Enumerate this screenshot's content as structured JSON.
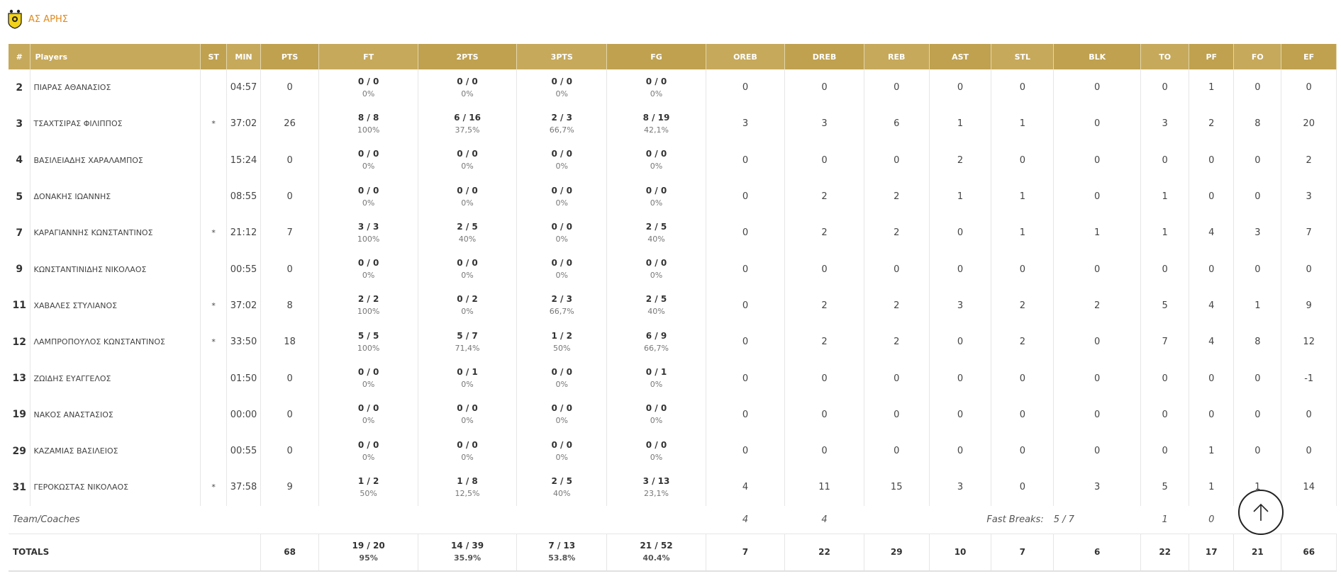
{
  "team": {
    "name": "ΑΣ ΑΡΗΣ",
    "logo_icon": "aris-logo-icon",
    "accent": "#e08a1e"
  },
  "table": {
    "header_color": "#c6a95b",
    "columns": [
      "#",
      "Players",
      "ST",
      "MIN",
      "PTS",
      "FT",
      "2PTS",
      "3PTS",
      "FG",
      "OREB",
      "DREB",
      "REB",
      "AST",
      "STL",
      "BLK",
      "TO",
      "PF",
      "FO",
      "EF"
    ],
    "players": [
      {
        "num": "2",
        "name": "ΠΙΑΡΑΣ ΑΘΑΝΑΣΙΟΣ",
        "st": "",
        "min": "04:57",
        "pts": "0",
        "ft": "0 / 0",
        "ft_pct": "0%",
        "p2": "0 / 0",
        "p2_pct": "0%",
        "p3": "0 / 0",
        "p3_pct": "0%",
        "fg": "0 / 0",
        "fg_pct": "0%",
        "oreb": "0",
        "dreb": "0",
        "reb": "0",
        "ast": "0",
        "stl": "0",
        "blk": "0",
        "to": "0",
        "pf": "1",
        "fo": "0",
        "ef": "0"
      },
      {
        "num": "3",
        "name": "ΤΣΑΧΤΣΙΡΑΣ ΦΙΛΙΠΠΟΣ",
        "st": "*",
        "min": "37:02",
        "pts": "26",
        "ft": "8 / 8",
        "ft_pct": "100%",
        "p2": "6 / 16",
        "p2_pct": "37,5%",
        "p3": "2 / 3",
        "p3_pct": "66,7%",
        "fg": "8 / 19",
        "fg_pct": "42,1%",
        "oreb": "3",
        "dreb": "3",
        "reb": "6",
        "ast": "1",
        "stl": "1",
        "blk": "0",
        "to": "3",
        "pf": "2",
        "fo": "8",
        "ef": "20"
      },
      {
        "num": "4",
        "name": "ΒΑΣΙΛΕΙΑΔΗΣ ΧΑΡΑΛΑΜΠΟΣ",
        "st": "",
        "min": "15:24",
        "pts": "0",
        "ft": "0 / 0",
        "ft_pct": "0%",
        "p2": "0 / 0",
        "p2_pct": "0%",
        "p3": "0 / 0",
        "p3_pct": "0%",
        "fg": "0 / 0",
        "fg_pct": "0%",
        "oreb": "0",
        "dreb": "0",
        "reb": "0",
        "ast": "2",
        "stl": "0",
        "blk": "0",
        "to": "0",
        "pf": "0",
        "fo": "0",
        "ef": "2"
      },
      {
        "num": "5",
        "name": "ΔΟΝΑΚΗΣ ΙΩΑΝΝΗΣ",
        "st": "",
        "min": "08:55",
        "pts": "0",
        "ft": "0 / 0",
        "ft_pct": "0%",
        "p2": "0 / 0",
        "p2_pct": "0%",
        "p3": "0 / 0",
        "p3_pct": "0%",
        "fg": "0 / 0",
        "fg_pct": "0%",
        "oreb": "0",
        "dreb": "2",
        "reb": "2",
        "ast": "1",
        "stl": "1",
        "blk": "0",
        "to": "1",
        "pf": "0",
        "fo": "0",
        "ef": "3"
      },
      {
        "num": "7",
        "name": "ΚΑΡΑΓΙΑΝΝΗΣ ΚΩΝΣΤΑΝΤΙΝΟΣ",
        "st": "*",
        "min": "21:12",
        "pts": "7",
        "ft": "3 / 3",
        "ft_pct": "100%",
        "p2": "2 / 5",
        "p2_pct": "40%",
        "p3": "0 / 0",
        "p3_pct": "0%",
        "fg": "2 / 5",
        "fg_pct": "40%",
        "oreb": "0",
        "dreb": "2",
        "reb": "2",
        "ast": "0",
        "stl": "1",
        "blk": "1",
        "to": "1",
        "pf": "4",
        "fo": "3",
        "ef": "7"
      },
      {
        "num": "9",
        "name": "ΚΩΝΣΤΑΝΤΙΝΙΔΗΣ ΝΙΚΟΛΑΟΣ",
        "st": "",
        "min": "00:55",
        "pts": "0",
        "ft": "0 / 0",
        "ft_pct": "0%",
        "p2": "0 / 0",
        "p2_pct": "0%",
        "p3": "0 / 0",
        "p3_pct": "0%",
        "fg": "0 / 0",
        "fg_pct": "0%",
        "oreb": "0",
        "dreb": "0",
        "reb": "0",
        "ast": "0",
        "stl": "0",
        "blk": "0",
        "to": "0",
        "pf": "0",
        "fo": "0",
        "ef": "0"
      },
      {
        "num": "11",
        "name": "ΧΑΒΑΛΕΣ ΣΤΥΛΙΑΝΟΣ",
        "st": "*",
        "min": "37:02",
        "pts": "8",
        "ft": "2 / 2",
        "ft_pct": "100%",
        "p2": "0 / 2",
        "p2_pct": "0%",
        "p3": "2 / 3",
        "p3_pct": "66,7%",
        "fg": "2 / 5",
        "fg_pct": "40%",
        "oreb": "0",
        "dreb": "2",
        "reb": "2",
        "ast": "3",
        "stl": "2",
        "blk": "2",
        "to": "5",
        "pf": "4",
        "fo": "1",
        "ef": "9"
      },
      {
        "num": "12",
        "name": "ΛΑΜΠΡΟΠΟΥΛΟΣ ΚΩΝΣΤΑΝΤΙΝΟΣ",
        "st": "*",
        "min": "33:50",
        "pts": "18",
        "ft": "5 / 5",
        "ft_pct": "100%",
        "p2": "5 / 7",
        "p2_pct": "71,4%",
        "p3": "1 / 2",
        "p3_pct": "50%",
        "fg": "6 / 9",
        "fg_pct": "66,7%",
        "oreb": "0",
        "dreb": "2",
        "reb": "2",
        "ast": "0",
        "stl": "2",
        "blk": "0",
        "to": "7",
        "pf": "4",
        "fo": "8",
        "ef": "12"
      },
      {
        "num": "13",
        "name": "ΖΩΙΔΗΣ ΕΥΑΓΓΕΛΟΣ",
        "st": "",
        "min": "01:50",
        "pts": "0",
        "ft": "0 / 0",
        "ft_pct": "0%",
        "p2": "0 / 1",
        "p2_pct": "0%",
        "p3": "0 / 0",
        "p3_pct": "0%",
        "fg": "0 / 1",
        "fg_pct": "0%",
        "oreb": "0",
        "dreb": "0",
        "reb": "0",
        "ast": "0",
        "stl": "0",
        "blk": "0",
        "to": "0",
        "pf": "0",
        "fo": "0",
        "ef": "-1"
      },
      {
        "num": "19",
        "name": "ΝΑΚΟΣ ΑΝΑΣΤΑΣΙΟΣ",
        "st": "",
        "min": "00:00",
        "pts": "0",
        "ft": "0 / 0",
        "ft_pct": "0%",
        "p2": "0 / 0",
        "p2_pct": "0%",
        "p3": "0 / 0",
        "p3_pct": "0%",
        "fg": "0 / 0",
        "fg_pct": "0%",
        "oreb": "0",
        "dreb": "0",
        "reb": "0",
        "ast": "0",
        "stl": "0",
        "blk": "0",
        "to": "0",
        "pf": "0",
        "fo": "0",
        "ef": "0"
      },
      {
        "num": "29",
        "name": "ΚΑΖΑΜΙΑΣ ΒΑΣΙΛΕΙΟΣ",
        "st": "",
        "min": "00:55",
        "pts": "0",
        "ft": "0 / 0",
        "ft_pct": "0%",
        "p2": "0 / 0",
        "p2_pct": "0%",
        "p3": "0 / 0",
        "p3_pct": "0%",
        "fg": "0 / 0",
        "fg_pct": "0%",
        "oreb": "0",
        "dreb": "0",
        "reb": "0",
        "ast": "0",
        "stl": "0",
        "blk": "0",
        "to": "0",
        "pf": "1",
        "fo": "0",
        "ef": "0"
      },
      {
        "num": "31",
        "name": "ΓΕΡΟΚΩΣΤΑΣ ΝΙΚΟΛΑΟΣ",
        "st": "*",
        "min": "37:58",
        "pts": "9",
        "ft": "1 / 2",
        "ft_pct": "50%",
        "p2": "1 / 8",
        "p2_pct": "12,5%",
        "p3": "2 / 5",
        "p3_pct": "40%",
        "fg": "3 / 13",
        "fg_pct": "23,1%",
        "oreb": "4",
        "dreb": "11",
        "reb": "15",
        "ast": "3",
        "stl": "0",
        "blk": "3",
        "to": "5",
        "pf": "1",
        "fo": "1",
        "ef": "14"
      }
    ],
    "team_row": {
      "label": "Team/Coaches",
      "oreb": "4",
      "dreb": "4",
      "fast_breaks_label": "Fast Breaks:",
      "fast_breaks_value": "5 / 7",
      "to": "1",
      "pf": "0"
    },
    "totals": {
      "label": "TOTALS",
      "pts": "68",
      "ft": "19 / 20",
      "ft_pct": "95%",
      "p2": "14 / 39",
      "p2_pct": "35.9%",
      "p3": "7 / 13",
      "p3_pct": "53.8%",
      "fg": "21 / 52",
      "fg_pct": "40.4%",
      "oreb": "7",
      "dreb": "22",
      "reb": "29",
      "ast": "10",
      "stl": "7",
      "blk": "6",
      "to": "22",
      "pf": "17",
      "fo": "21",
      "ef": "66"
    }
  },
  "scroll_top": {
    "icon": "arrow-up-icon"
  }
}
